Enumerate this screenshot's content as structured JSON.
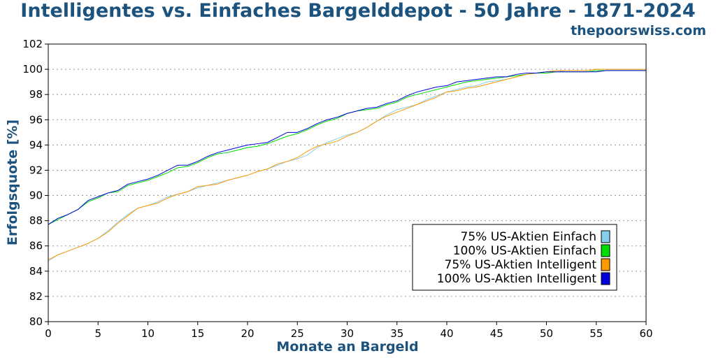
{
  "header": {
    "title": "Intelligentes vs. Einfaches Bargelddepot - 50 Jahre - 1871-2024",
    "site": "thepoorswiss.com"
  },
  "chart_data": {
    "type": "line",
    "title": "Intelligentes vs. Einfaches Bargelddepot - 50 Jahre - 1871-2024",
    "xlabel": "Monate an Bargeld",
    "ylabel": "Erfolgsquote [%]",
    "xlim": [
      0,
      60
    ],
    "ylim": [
      80,
      102
    ],
    "xticks": [
      0,
      5,
      10,
      15,
      20,
      25,
      30,
      35,
      40,
      45,
      50,
      55,
      60
    ],
    "yticks": [
      80,
      82,
      84,
      86,
      88,
      90,
      92,
      94,
      96,
      98,
      100,
      102
    ],
    "grid": true,
    "legend_position": "lower-right",
    "x": [
      0,
      1,
      2,
      3,
      4,
      5,
      6,
      7,
      8,
      9,
      10,
      11,
      12,
      13,
      14,
      15,
      16,
      17,
      18,
      19,
      20,
      21,
      22,
      23,
      24,
      25,
      26,
      27,
      28,
      29,
      30,
      31,
      32,
      33,
      34,
      35,
      36,
      37,
      38,
      39,
      40,
      41,
      42,
      43,
      44,
      45,
      46,
      47,
      48,
      49,
      50,
      51,
      52,
      53,
      54,
      55,
      56,
      57,
      58,
      59,
      60
    ],
    "series": [
      {
        "name": "75% US-Aktien Einfach",
        "color": "#87ceeb",
        "values": [
          84.8,
          85.3,
          85.6,
          85.9,
          86.2,
          86.6,
          87.2,
          87.9,
          88.5,
          89.0,
          89.2,
          89.5,
          89.9,
          90.1,
          90.3,
          90.6,
          90.8,
          91.0,
          91.2,
          91.4,
          91.6,
          91.9,
          92.1,
          92.4,
          92.7,
          92.9,
          93.2,
          93.8,
          94.2,
          94.5,
          94.8,
          95.0,
          95.4,
          95.9,
          96.4,
          96.8,
          97.0,
          97.2,
          97.6,
          97.9,
          98.2,
          98.4,
          98.6,
          98.7,
          99.0,
          99.1,
          99.2,
          99.4,
          99.6,
          99.7,
          99.8,
          99.8,
          99.9,
          99.9,
          99.9,
          100.0,
          100.0,
          100.0,
          100.0,
          100.0,
          100.0
        ]
      },
      {
        "name": "100% US-Aktien Einfach",
        "color": "#00dd00",
        "values": [
          87.7,
          88.1,
          88.5,
          88.9,
          89.5,
          89.8,
          90.2,
          90.3,
          90.8,
          91.0,
          91.2,
          91.5,
          91.8,
          92.2,
          92.3,
          92.6,
          93.0,
          93.3,
          93.4,
          93.6,
          93.8,
          93.9,
          94.1,
          94.4,
          94.7,
          94.9,
          95.2,
          95.6,
          95.9,
          96.1,
          96.5,
          96.7,
          96.8,
          96.9,
          97.2,
          97.4,
          97.8,
          98.0,
          98.2,
          98.4,
          98.6,
          98.8,
          99.0,
          99.1,
          99.2,
          99.3,
          99.4,
          99.5,
          99.6,
          99.7,
          99.7,
          99.8,
          99.8,
          99.8,
          99.8,
          99.9,
          99.9,
          99.9,
          99.9,
          99.9,
          99.9
        ]
      },
      {
        "name": "75% US-Aktien Intelligent",
        "color": "#ff9900",
        "values": [
          84.9,
          85.3,
          85.6,
          85.9,
          86.2,
          86.6,
          87.1,
          87.8,
          88.4,
          89.0,
          89.2,
          89.4,
          89.8,
          90.1,
          90.3,
          90.7,
          90.8,
          90.9,
          91.2,
          91.4,
          91.6,
          91.9,
          92.1,
          92.5,
          92.7,
          93.0,
          93.5,
          93.9,
          94.1,
          94.3,
          94.7,
          95.0,
          95.4,
          95.9,
          96.3,
          96.6,
          96.9,
          97.2,
          97.5,
          97.8,
          98.2,
          98.3,
          98.5,
          98.6,
          98.8,
          99.0,
          99.2,
          99.4,
          99.6,
          99.7,
          99.8,
          99.9,
          99.9,
          99.9,
          99.9,
          100.0,
          100.0,
          100.0,
          100.0,
          100.0,
          100.0
        ]
      },
      {
        "name": "100% US-Aktien Intelligent",
        "color": "#0000dd",
        "values": [
          87.7,
          88.2,
          88.5,
          88.9,
          89.6,
          89.9,
          90.2,
          90.4,
          90.9,
          91.1,
          91.3,
          91.6,
          92.0,
          92.4,
          92.4,
          92.7,
          93.1,
          93.4,
          93.6,
          93.8,
          94.0,
          94.1,
          94.2,
          94.6,
          95.0,
          95.0,
          95.3,
          95.7,
          96.0,
          96.2,
          96.5,
          96.7,
          96.9,
          97.0,
          97.3,
          97.5,
          97.9,
          98.2,
          98.4,
          98.6,
          98.7,
          99.0,
          99.1,
          99.2,
          99.3,
          99.4,
          99.4,
          99.6,
          99.7,
          99.7,
          99.8,
          99.8,
          99.8,
          99.8,
          99.8,
          99.8,
          99.9,
          99.9,
          99.9,
          99.9,
          99.9
        ]
      }
    ]
  }
}
